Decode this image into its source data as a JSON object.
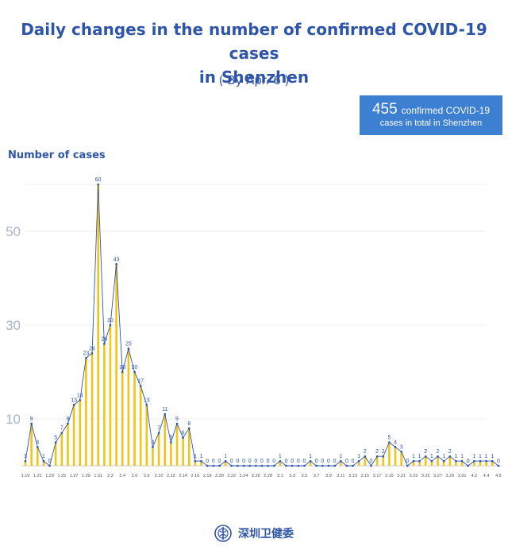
{
  "header": {
    "title_line1": "Daily changes in the number of confirmed COVID-19 cases",
    "title_line2": "in Shenzhen",
    "subtitle": "( By Apr. 6 )"
  },
  "summary": {
    "count": "455",
    "line1_suffix": "confirmed COVID-19",
    "line2": "cases in total in Shenzhen"
  },
  "footer": {
    "org_name": "深圳卫健委",
    "logo_icon": "health-commission-emblem-icon"
  },
  "colors": {
    "bar": "#f2c418",
    "line": "#2f55a8",
    "axis_text": "#a9b3cf",
    "title": "#2f55a8"
  },
  "chart_data": {
    "type": "bar",
    "title": "Daily changes in the number of confirmed COVID-19 cases in Shenzhen",
    "ylabel": "Number of cases",
    "ylim": [
      0,
      60
    ],
    "yticks": [
      10,
      30,
      50
    ],
    "start_date": "1.19",
    "x": [
      "1.19",
      "1.20",
      "1.21",
      "1.22",
      "1.23",
      "1.24",
      "1.25",
      "1.26",
      "1.27",
      "1.28",
      "1.29",
      "1.30",
      "1.31",
      "2.1",
      "2.2",
      "2.3",
      "2.4",
      "2.5",
      "2.6",
      "2.7",
      "2.8",
      "2.9",
      "2.10",
      "2.11",
      "2.12",
      "2.13",
      "2.14",
      "2.15",
      "2.16",
      "2.17",
      "2.18",
      "2.19",
      "2.20",
      "2.21",
      "2.22",
      "2.23",
      "2.24",
      "2.25",
      "2.26",
      "2.27",
      "2.28",
      "2.29",
      "3.1",
      "3.2",
      "3.3",
      "3.4",
      "3.5",
      "3.6",
      "3.7",
      "3.8",
      "3.9",
      "3.10",
      "3.11",
      "3.12",
      "3.13",
      "3.14",
      "3.15",
      "3.16",
      "3.17",
      "3.18",
      "3.19",
      "3.20",
      "3.21",
      "3.22",
      "3.23",
      "3.24",
      "3.25",
      "3.26",
      "3.27",
      "3.28",
      "3.29",
      "3.30",
      "3.31",
      "4.1",
      "4.2",
      "4.3",
      "4.4",
      "4.5",
      "4.6"
    ],
    "x_tick_labels": [
      "1.19",
      "1.21",
      "1.23",
      "1.25",
      "1.27",
      "1.29",
      "1.31",
      "2.2",
      "2.4",
      "2.6",
      "2.8",
      "2.10",
      "2.12",
      "2.14",
      "2.16",
      "2.18",
      "2.20",
      "2.22",
      "2.24",
      "2.26",
      "2.28",
      "3.1",
      "3.3",
      "3.5",
      "3.7",
      "3.9",
      "3.11",
      "3.13",
      "3.15",
      "3.17",
      "3.19",
      "3.21",
      "3.23",
      "3.25",
      "3.27",
      "3.29",
      "3.31",
      "4.2",
      "4.4",
      "4.6"
    ],
    "values": [
      1,
      9,
      4,
      1,
      0,
      5,
      7,
      9,
      13,
      14,
      23,
      24,
      60,
      26,
      30,
      43,
      20,
      25,
      20,
      17,
      13,
      4,
      7,
      11,
      5,
      9,
      6,
      8,
      1,
      1,
      0,
      0,
      0,
      1,
      0,
      0,
      0,
      0,
      0,
      0,
      0,
      0,
      1,
      0,
      0,
      0,
      0,
      1,
      0,
      0,
      0,
      0,
      1,
      0,
      0,
      1,
      2,
      0,
      2,
      2,
      5,
      4,
      3,
      0,
      1,
      1,
      2,
      1,
      2,
      1,
      2,
      1,
      1,
      0,
      1,
      1,
      1,
      1,
      0
    ],
    "grid": true
  }
}
